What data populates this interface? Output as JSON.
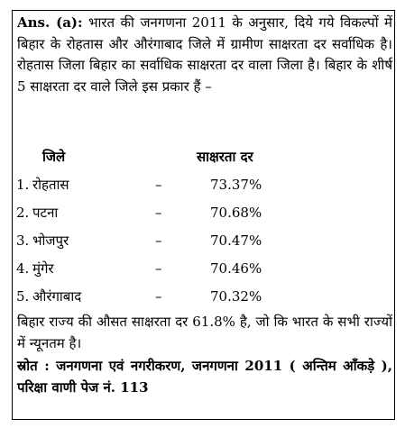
{
  "answer": {
    "label": "Ans. (a):",
    "intro": "भारत की जनगणना 2011 के अनुसार, दिये गये विकल्पों में बिहार के रोहतास और औरंगाबाद जिले में ग्रामीण साक्षरता दर सर्वाधिक है। रोहतास जिला बिहार का सर्वाधिक साक्षरता दर वाला जिला है। बिहार के शीर्ष 5 साक्षरता दर वाले जिले इस प्रकार हैं –"
  },
  "table": {
    "headers": {
      "district": "जिले",
      "rate": "साक्षरता दर"
    },
    "rows": [
      {
        "num": "1.",
        "name": "रोहतास",
        "dash": "–",
        "value": "73.37%"
      },
      {
        "num": "2.",
        "name": "पटना",
        "dash": "–",
        "value": "70.68%"
      },
      {
        "num": "3.",
        "name": "भोजपुर",
        "dash": "–",
        "value": "70.47%"
      },
      {
        "num": "4.",
        "name": "मुंगेर",
        "dash": "–",
        "value": "70.46%"
      },
      {
        "num": "5.",
        "name": "औरंगाबाद",
        "dash": "–",
        "value": "70.32%"
      }
    ]
  },
  "summary": "बिहार राज्य की औसत साक्षरता दर 61.8% है, जो कि भारत के सभी राज्यों में न्यूनतम है।",
  "source": "स्रोत : जनगणना एवं नगरीकरण, जनगणना 2011 ( अन्तिम आँकड़े ), परिक्षा वाणी पेज नं. 113"
}
